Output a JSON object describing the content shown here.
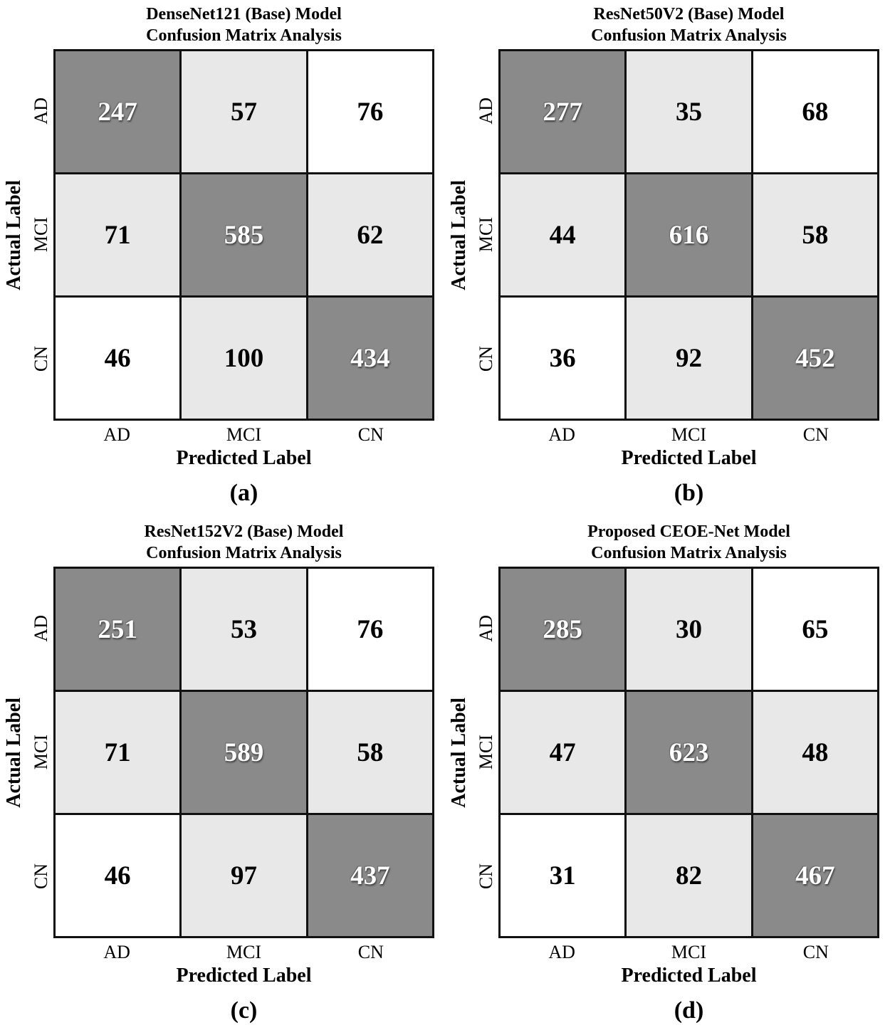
{
  "colors": {
    "diagonal_cell_bg": "#8a8a8a",
    "adjacent_cell_bg": "#e8e8e8",
    "corner_cell_bg": "#ffffff",
    "grid_line": "#111111",
    "diagonal_text": "#ffffff",
    "off_diagonal_text": "#000000"
  },
  "axes": {
    "x_title": "Predicted Label",
    "y_title": "Actual Label",
    "x_ticks": [
      "AD",
      "MCI",
      "CN"
    ],
    "y_ticks": [
      "AD",
      "MCI",
      "CN"
    ]
  },
  "panels": [
    {
      "caption": "(a)",
      "title1": "DenseNet121 (Base) Model",
      "title2": "Confusion Matrix Analysis"
    },
    {
      "caption": "(b)",
      "title1": "ResNet50V2 (Base) Model",
      "title2": "Confusion Matrix Analysis"
    },
    {
      "caption": "(c)",
      "title1": "ResNet152V2 (Base) Model",
      "title2": "Confusion Matrix Analysis"
    },
    {
      "caption": "(d)",
      "title1": "Proposed CEOE-Net Model",
      "title2": "Confusion Matrix Analysis"
    }
  ],
  "chart_data": [
    {
      "type": "heatmap",
      "title": "DenseNet121 (Base) Model Confusion Matrix Analysis",
      "caption": "(a)",
      "xlabel": "Predicted Label",
      "ylabel": "Actual Label",
      "x_categories": [
        "AD",
        "MCI",
        "CN"
      ],
      "y_categories": [
        "AD",
        "MCI",
        "CN"
      ],
      "values": [
        [
          247,
          57,
          76
        ],
        [
          71,
          585,
          62
        ],
        [
          46,
          100,
          434
        ]
      ],
      "legend": "none",
      "grid": "on",
      "shading_pattern": "diagonal dark gray, off-diagonal neighbors light gray, far corners white"
    },
    {
      "type": "heatmap",
      "title": "ResNet50V2 (Base) Model Confusion Matrix Analysis",
      "caption": "(b)",
      "xlabel": "Predicted Label",
      "ylabel": "Actual Label",
      "x_categories": [
        "AD",
        "MCI",
        "CN"
      ],
      "y_categories": [
        "AD",
        "MCI",
        "CN"
      ],
      "values": [
        [
          277,
          35,
          68
        ],
        [
          44,
          616,
          58
        ],
        [
          36,
          92,
          452
        ]
      ],
      "legend": "none",
      "grid": "on",
      "shading_pattern": "diagonal dark gray, off-diagonal neighbors light gray, far corners white"
    },
    {
      "type": "heatmap",
      "title": "ResNet152V2 (Base) Model Confusion Matrix Analysis",
      "caption": "(c)",
      "xlabel": "Predicted Label",
      "ylabel": "Actual Label",
      "x_categories": [
        "AD",
        "MCI",
        "CN"
      ],
      "y_categories": [
        "AD",
        "MCI",
        "CN"
      ],
      "values": [
        [
          251,
          53,
          76
        ],
        [
          71,
          589,
          58
        ],
        [
          46,
          97,
          437
        ]
      ],
      "legend": "none",
      "grid": "on",
      "shading_pattern": "diagonal dark gray, off-diagonal neighbors light gray, far corners white"
    },
    {
      "type": "heatmap",
      "title": "Proposed CEOE-Net Model Confusion Matrix Analysis",
      "caption": "(d)",
      "xlabel": "Predicted Label",
      "ylabel": "Actual Label",
      "x_categories": [
        "AD",
        "MCI",
        "CN"
      ],
      "y_categories": [
        "AD",
        "MCI",
        "CN"
      ],
      "values": [
        [
          285,
          30,
          65
        ],
        [
          47,
          623,
          48
        ],
        [
          31,
          82,
          467
        ]
      ],
      "legend": "none",
      "grid": "on",
      "shading_pattern": "diagonal dark gray, off-diagonal neighbors light gray, far corners white"
    }
  ]
}
